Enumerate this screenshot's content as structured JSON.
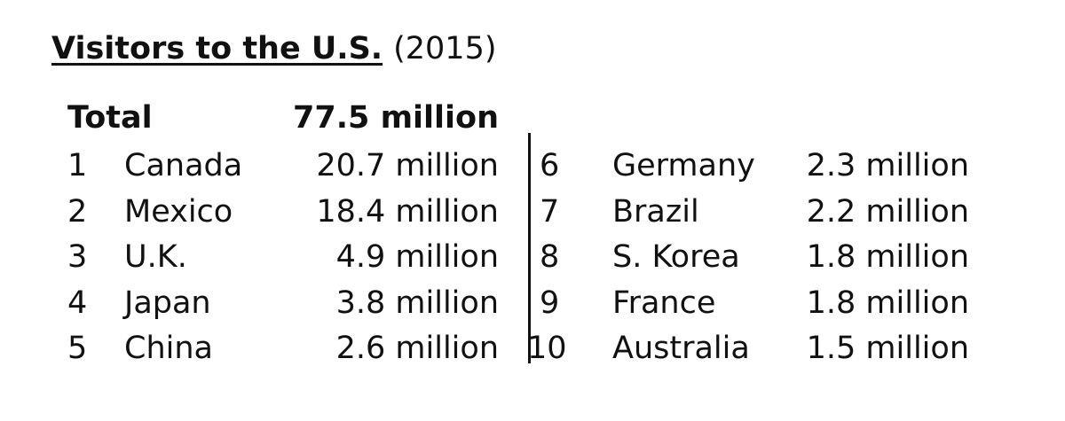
{
  "title": "Visitors to the U.S.",
  "year": "(2015)",
  "total": {
    "label": "Total",
    "value": "77.5 million"
  },
  "left": [
    {
      "rank": "1",
      "country": "Canada",
      "visitors": "20.7 million"
    },
    {
      "rank": "2",
      "country": "Mexico",
      "visitors": "18.4 million"
    },
    {
      "rank": "3",
      "country": "U.K.",
      "visitors": "4.9 million"
    },
    {
      "rank": "4",
      "country": "Japan",
      "visitors": "3.8 million"
    },
    {
      "rank": "5",
      "country": "China",
      "visitors": "2.6 million"
    }
  ],
  "right": [
    {
      "rank": "6",
      "country": "Germany",
      "visitors": "2.3 million"
    },
    {
      "rank": "7",
      "country": "Brazil",
      "visitors": "2.2 million"
    },
    {
      "rank": "8",
      "country": "S. Korea",
      "visitors": "1.8 million"
    },
    {
      "rank": "9",
      "country": "France",
      "visitors": "1.8 million"
    },
    {
      "rank": "10",
      "country": "Australia",
      "visitors": "1.5 million"
    }
  ]
}
